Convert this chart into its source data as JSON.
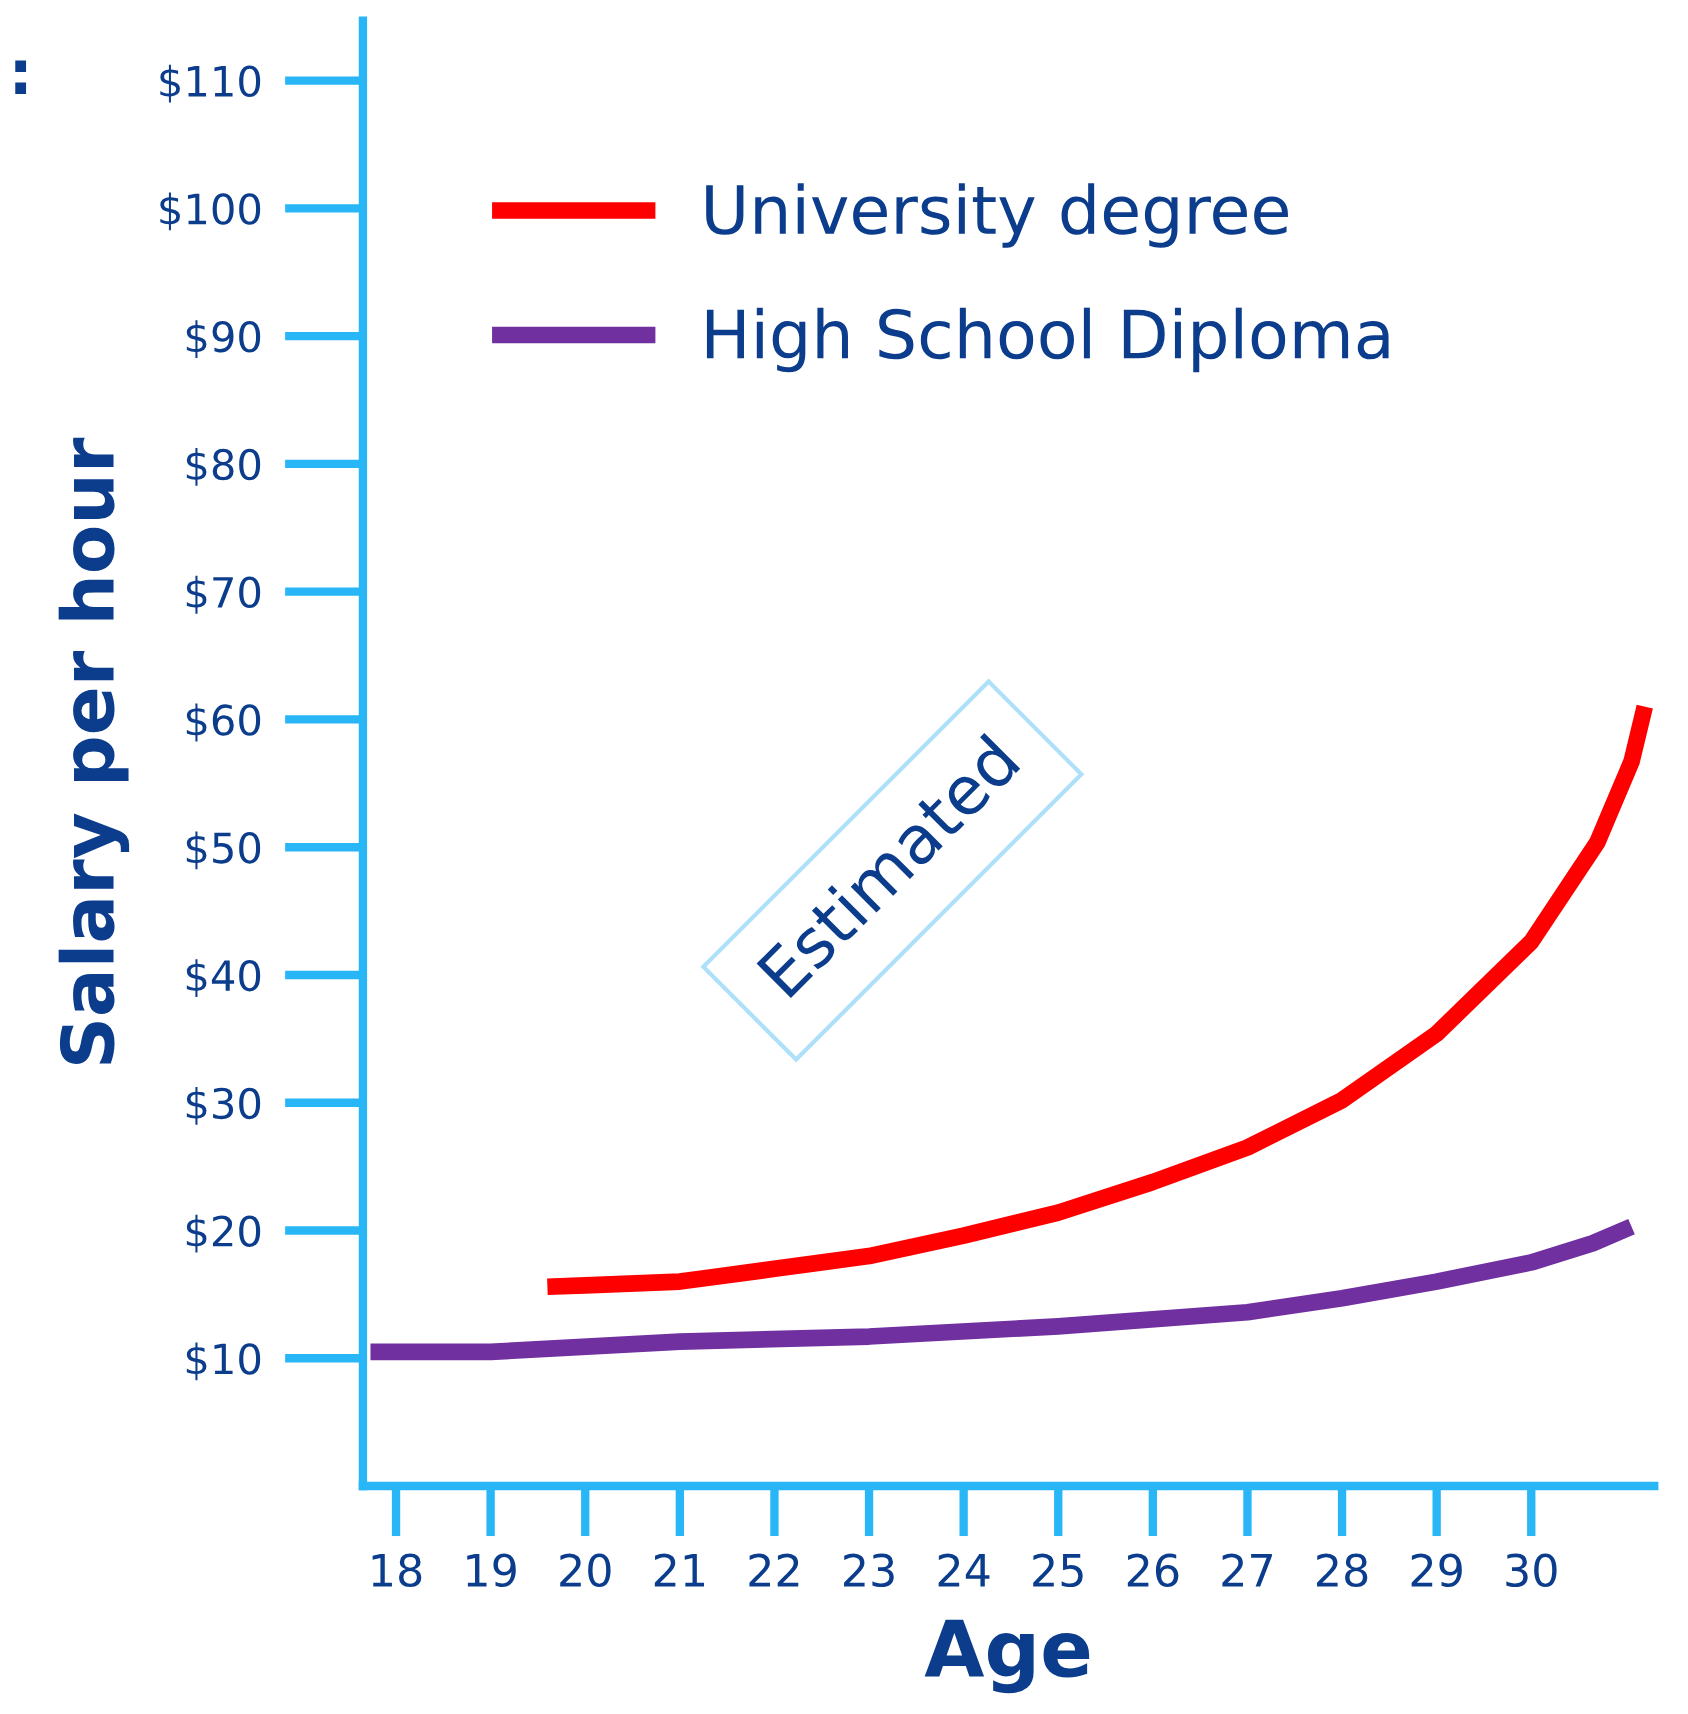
{
  "chart_data": {
    "type": "line",
    "xlabel": "Age",
    "ylabel": "Salary per hour",
    "annotations": [
      ":",
      "Estimated"
    ],
    "xlim": [
      17.65,
      31.3
    ],
    "xticks": [
      18,
      19,
      20,
      21,
      22,
      23,
      24,
      25,
      26,
      27,
      28,
      29,
      30
    ],
    "ylim": [
      0,
      114.7
    ],
    "yticks": [
      {
        "value": 10,
        "label": "$10"
      },
      {
        "value": 20,
        "label": "$20"
      },
      {
        "value": 30,
        "label": "$30"
      },
      {
        "value": 40,
        "label": "$40"
      },
      {
        "value": 50,
        "label": "$50"
      },
      {
        "value": 60,
        "label": "$60"
      },
      {
        "value": 70,
        "label": "$70"
      },
      {
        "value": 80,
        "label": "$80"
      },
      {
        "value": 90,
        "label": "$90"
      },
      {
        "value": 100,
        "label": "$100"
      },
      {
        "value": 110,
        "label": "$110"
      }
    ],
    "grid": false,
    "legend": "top left",
    "marker": "none",
    "line_style": "solid",
    "series": [
      {
        "name": "University degree",
        "color": "#ff0000",
        "x": [
          19.6,
          20,
          21,
          22,
          23,
          24,
          25,
          26,
          27,
          28,
          29,
          30,
          30.7,
          31.06,
          31.2
        ],
        "values": [
          15.6,
          15.7,
          16,
          17,
          18,
          19.6,
          21.4,
          23.8,
          26.5,
          30.2,
          35.4,
          42.6,
          50.4,
          56.7,
          61
        ]
      },
      {
        "name": "High School Diploma",
        "color": "#7030a0",
        "x": [
          17.73,
          19,
          21,
          23,
          25,
          27,
          28,
          29,
          30,
          30.65,
          31.06
        ],
        "values": [
          10.5,
          10.5,
          11.3,
          11.7,
          12.5,
          13.6,
          14.7,
          16,
          17.5,
          19,
          20.3
        ]
      }
    ]
  }
}
